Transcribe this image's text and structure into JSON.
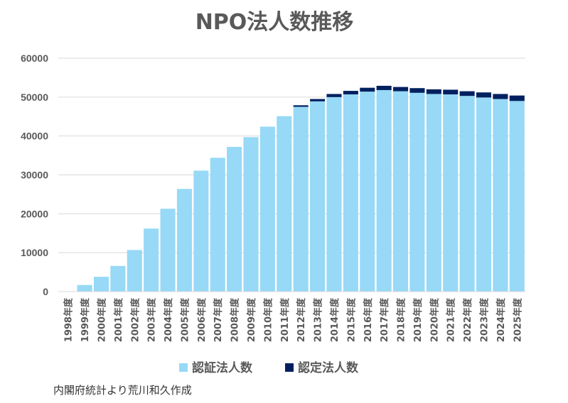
{
  "chart_data": {
    "type": "bar",
    "stacked": true,
    "title": "NPO法人数推移",
    "xlabel": "",
    "ylabel": "",
    "ylim": [
      0,
      60000
    ],
    "yticks": [
      0,
      10000,
      20000,
      30000,
      40000,
      50000,
      60000
    ],
    "grid": true,
    "legend_position": "bottom",
    "categories": [
      "1998年度",
      "1999年度",
      "2000年度",
      "2001年度",
      "2002年度",
      "2003年度",
      "2004年度",
      "2005年度",
      "2006年度",
      "2007年度",
      "2008年度",
      "2009年度",
      "2010年度",
      "2011年度",
      "2012年度",
      "2013年度",
      "2014年度",
      "2015年度",
      "2016年度",
      "2017年度",
      "2018年度",
      "2019年度",
      "2020年度",
      "2021年度",
      "2022年度",
      "2023年度",
      "2024年度",
      "2025年度"
    ],
    "series": [
      {
        "name": "認証法人数",
        "color": "#97d9f6",
        "values": [
          0,
          1700,
          3800,
          6600,
          10700,
          16200,
          21300,
          26400,
          31100,
          34400,
          37200,
          39700,
          42400,
          45100,
          47500,
          48900,
          50000,
          50700,
          51400,
          51800,
          51500,
          51100,
          50800,
          50700,
          50300,
          49900,
          49500,
          49000
        ]
      },
      {
        "name": "認定法人数",
        "color": "#002060",
        "values": [
          0,
          0,
          0,
          0,
          0,
          0,
          0,
          0,
          0,
          0,
          0,
          0,
          0,
          0,
          400,
          600,
          800,
          900,
          1000,
          1100,
          1100,
          1200,
          1200,
          1200,
          1200,
          1300,
          1300,
          1400
        ]
      }
    ]
  },
  "source_note": "内閣府統計より荒川和久作成"
}
